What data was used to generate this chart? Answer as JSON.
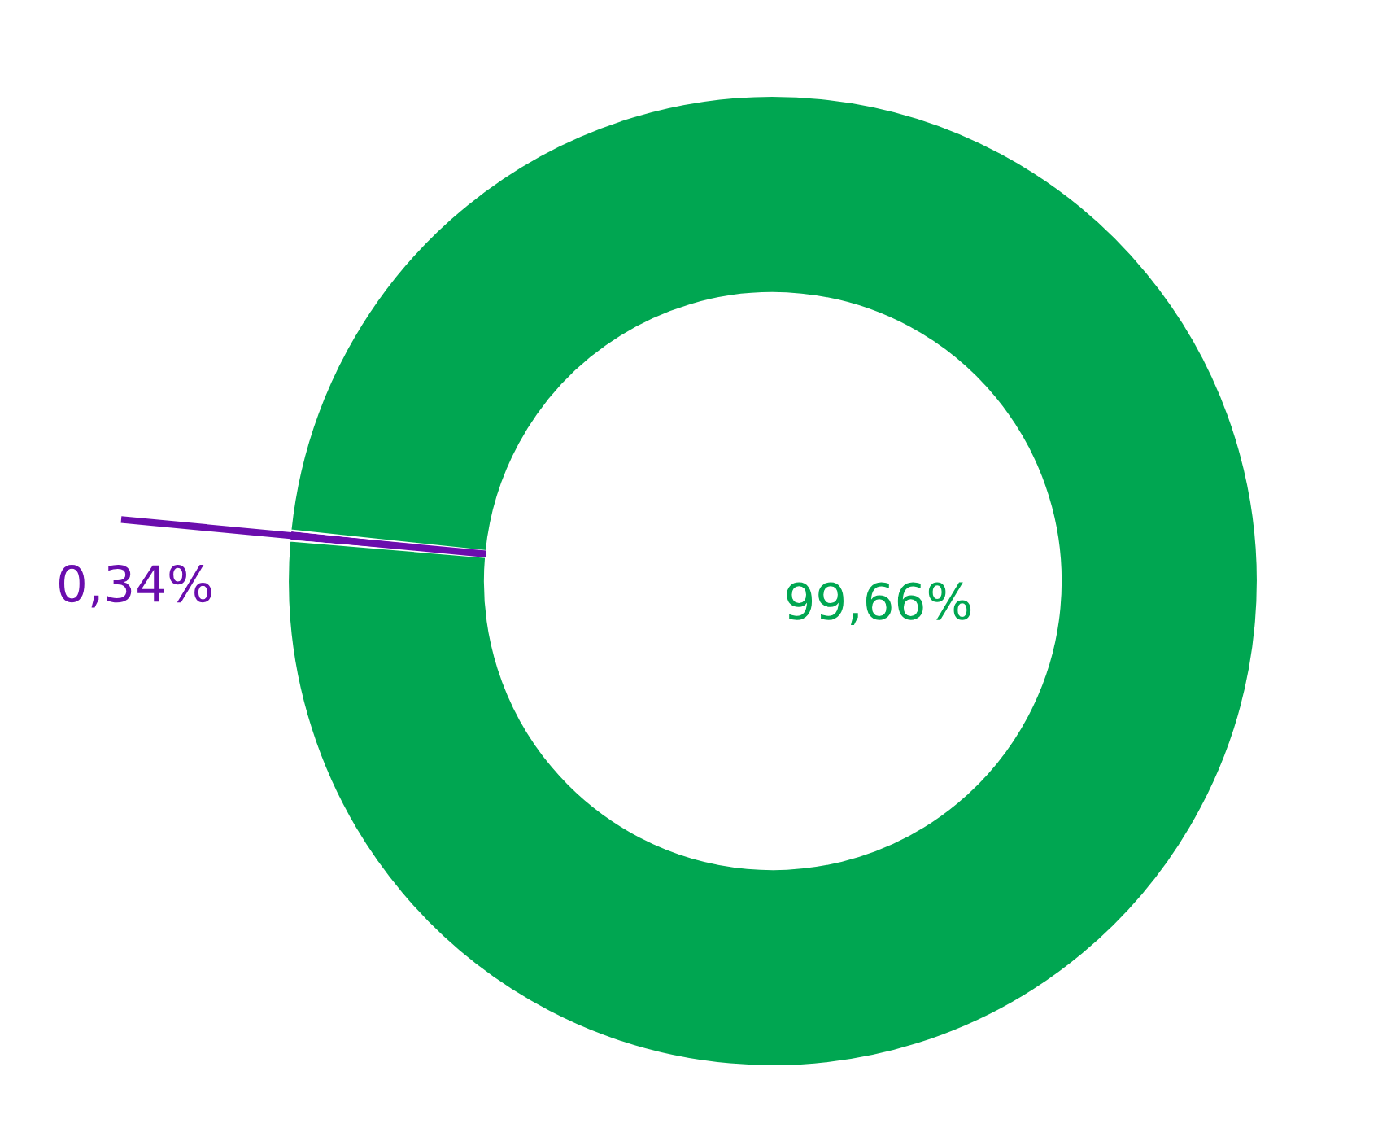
{
  "chart_data": {
    "type": "donut",
    "categories": [
      null,
      null
    ],
    "values": [
      0.34,
      99.66
    ],
    "colors": [
      "#6a0dad",
      "#00a651"
    ],
    "value_labels": [
      "0,34%",
      "99,66%"
    ],
    "legend": false
  }
}
